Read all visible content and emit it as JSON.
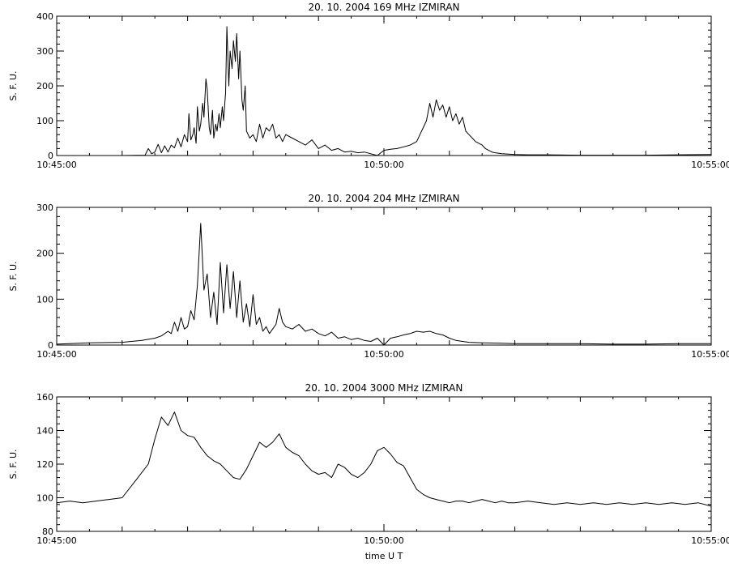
{
  "chart_data": [
    {
      "type": "line",
      "title": "20.  10.  2004    169 MHz    IZMIRAN",
      "xlabel": "",
      "ylabel": "S. F. U.",
      "xlim": [
        0,
        10
      ],
      "ylim": [
        0,
        400
      ],
      "yticks": [
        "0",
        "100",
        "200",
        "300",
        "400"
      ],
      "xticks": [
        "10:45:00",
        "10:50:00",
        "10:55:00"
      ],
      "grid": false,
      "series": [
        {
          "x": [
            0,
            1.0,
            1.35,
            1.4,
            1.45,
            1.5,
            1.55,
            1.6,
            1.65,
            1.7,
            1.75,
            1.8,
            1.85,
            1.9,
            1.95,
            2.0,
            2.02,
            2.05,
            2.08,
            2.1,
            2.13,
            2.15,
            2.18,
            2.2,
            2.23,
            2.25,
            2.28,
            2.3,
            2.33,
            2.35,
            2.38,
            2.4,
            2.43,
            2.45,
            2.48,
            2.5,
            2.53,
            2.55,
            2.58,
            2.6,
            2.63,
            2.65,
            2.68,
            2.7,
            2.73,
            2.75,
            2.78,
            2.8,
            2.83,
            2.85,
            2.88,
            2.9,
            2.95,
            3.0,
            3.05,
            3.1,
            3.15,
            3.2,
            3.25,
            3.3,
            3.35,
            3.4,
            3.45,
            3.5,
            3.6,
            3.7,
            3.8,
            3.9,
            4.0,
            4.1,
            4.2,
            4.3,
            4.4,
            4.5,
            4.6,
            4.7,
            4.8,
            4.9,
            5.0,
            5.1,
            5.2,
            5.3,
            5.4,
            5.5,
            5.55,
            5.6,
            5.65,
            5.7,
            5.75,
            5.8,
            5.85,
            5.9,
            5.95,
            6.0,
            6.05,
            6.1,
            6.15,
            6.2,
            6.25,
            6.3,
            6.35,
            6.4,
            6.45,
            6.5,
            6.55,
            6.6,
            6.65,
            6.7,
            6.8,
            6.9,
            7.0,
            7.2,
            7.5,
            8.0,
            8.5,
            9.0,
            9.5,
            10.0
          ],
          "y": [
            0,
            0,
            1,
            20,
            5,
            10,
            32,
            8,
            28,
            10,
            30,
            22,
            50,
            25,
            60,
            40,
            120,
            45,
            60,
            80,
            35,
            140,
            70,
            90,
            150,
            110,
            220,
            190,
            80,
            60,
            130,
            50,
            90,
            70,
            120,
            80,
            140,
            100,
            180,
            370,
            200,
            300,
            250,
            330,
            270,
            350,
            220,
            300,
            160,
            130,
            200,
            70,
            50,
            60,
            40,
            90,
            50,
            80,
            70,
            90,
            50,
            60,
            40,
            60,
            50,
            40,
            30,
            45,
            20,
            30,
            15,
            20,
            10,
            12,
            8,
            10,
            5,
            0,
            15,
            18,
            20,
            25,
            30,
            40,
            60,
            80,
            100,
            150,
            110,
            160,
            130,
            145,
            110,
            140,
            100,
            120,
            90,
            110,
            70,
            60,
            50,
            40,
            35,
            30,
            20,
            15,
            10,
            8,
            5,
            4,
            3,
            2,
            2,
            1,
            1,
            1,
            2,
            3
          ]
        }
      ]
    },
    {
      "type": "line",
      "title": "20.  10.  2004    204 MHz    IZMIRAN",
      "xlabel": "",
      "ylabel": "S. F. U.",
      "xlim": [
        0,
        10
      ],
      "ylim": [
        0,
        300
      ],
      "yticks": [
        "0",
        "100",
        "200",
        "300"
      ],
      "xticks": [
        "10:45:00",
        "10:50:00",
        "10:55:00"
      ],
      "grid": false,
      "series": [
        {
          "x": [
            0,
            0.5,
            1.0,
            1.3,
            1.5,
            1.6,
            1.7,
            1.75,
            1.8,
            1.85,
            1.9,
            1.95,
            2.0,
            2.05,
            2.1,
            2.15,
            2.2,
            2.25,
            2.3,
            2.35,
            2.4,
            2.45,
            2.5,
            2.55,
            2.6,
            2.65,
            2.7,
            2.75,
            2.8,
            2.85,
            2.9,
            2.95,
            3.0,
            3.05,
            3.1,
            3.15,
            3.2,
            3.25,
            3.3,
            3.35,
            3.4,
            3.45,
            3.5,
            3.6,
            3.7,
            3.8,
            3.9,
            4.0,
            4.1,
            4.2,
            4.3,
            4.4,
            4.5,
            4.6,
            4.7,
            4.8,
            4.9,
            5.0,
            5.1,
            5.2,
            5.3,
            5.4,
            5.5,
            5.6,
            5.7,
            5.8,
            5.9,
            6.0,
            6.1,
            6.2,
            6.3,
            6.5,
            6.8,
            7.0,
            7.5,
            8.0,
            8.5,
            9.0,
            9.5,
            10.0
          ],
          "y": [
            2,
            5,
            6,
            10,
            15,
            20,
            30,
            25,
            50,
            30,
            60,
            35,
            40,
            75,
            55,
            130,
            265,
            120,
            155,
            60,
            115,
            45,
            180,
            70,
            175,
            80,
            160,
            60,
            140,
            50,
            90,
            40,
            110,
            45,
            60,
            30,
            40,
            25,
            35,
            45,
            80,
            50,
            40,
            35,
            45,
            30,
            35,
            25,
            20,
            28,
            15,
            18,
            12,
            15,
            10,
            8,
            15,
            0,
            15,
            18,
            22,
            25,
            30,
            28,
            30,
            25,
            22,
            15,
            10,
            8,
            6,
            5,
            4,
            3,
            3,
            3,
            2,
            2,
            3,
            3
          ]
        }
      ]
    },
    {
      "type": "line",
      "title": "20.  10.  2004    3000 MHz    IZMIRAN",
      "xlabel": "time  U T",
      "ylabel": "S. F. U.",
      "xlim": [
        0,
        10
      ],
      "ylim": [
        80,
        160
      ],
      "yticks": [
        "80",
        "100",
        "120",
        "140",
        "160"
      ],
      "xticks": [
        "10:45:00",
        "10:50:00",
        "10:55:00"
      ],
      "grid": false,
      "series": [
        {
          "x": [
            0,
            0.2,
            0.4,
            0.6,
            0.8,
            1.0,
            1.2,
            1.4,
            1.5,
            1.6,
            1.7,
            1.8,
            1.9,
            2.0,
            2.1,
            2.2,
            2.3,
            2.4,
            2.5,
            2.6,
            2.7,
            2.8,
            2.9,
            3.0,
            3.1,
            3.2,
            3.3,
            3.4,
            3.5,
            3.6,
            3.7,
            3.8,
            3.9,
            4.0,
            4.1,
            4.2,
            4.3,
            4.4,
            4.5,
            4.6,
            4.7,
            4.8,
            4.9,
            5.0,
            5.1,
            5.2,
            5.3,
            5.4,
            5.5,
            5.6,
            5.7,
            5.8,
            5.9,
            6.0,
            6.1,
            6.2,
            6.3,
            6.4,
            6.5,
            6.6,
            6.7,
            6.8,
            6.9,
            7.0,
            7.2,
            7.4,
            7.6,
            7.8,
            8.0,
            8.2,
            8.4,
            8.6,
            8.8,
            9.0,
            9.2,
            9.4,
            9.6,
            9.8,
            10.0
          ],
          "y": [
            97,
            98,
            97,
            98,
            99,
            100,
            110,
            120,
            135,
            148,
            143,
            151,
            140,
            137,
            136,
            130,
            125,
            122,
            120,
            116,
            112,
            111,
            117,
            125,
            133,
            130,
            133,
            138,
            130,
            127,
            125,
            120,
            116,
            114,
            115,
            112,
            120,
            118,
            114,
            112,
            115,
            120,
            128,
            130,
            126,
            121,
            119,
            112,
            105,
            102,
            100,
            99,
            98,
            97,
            98,
            98,
            97,
            98,
            99,
            98,
            97,
            98,
            97,
            97,
            98,
            97,
            96,
            97,
            96,
            97,
            96,
            97,
            96,
            97,
            96,
            97,
            96,
            97,
            95
          ]
        }
      ]
    }
  ]
}
